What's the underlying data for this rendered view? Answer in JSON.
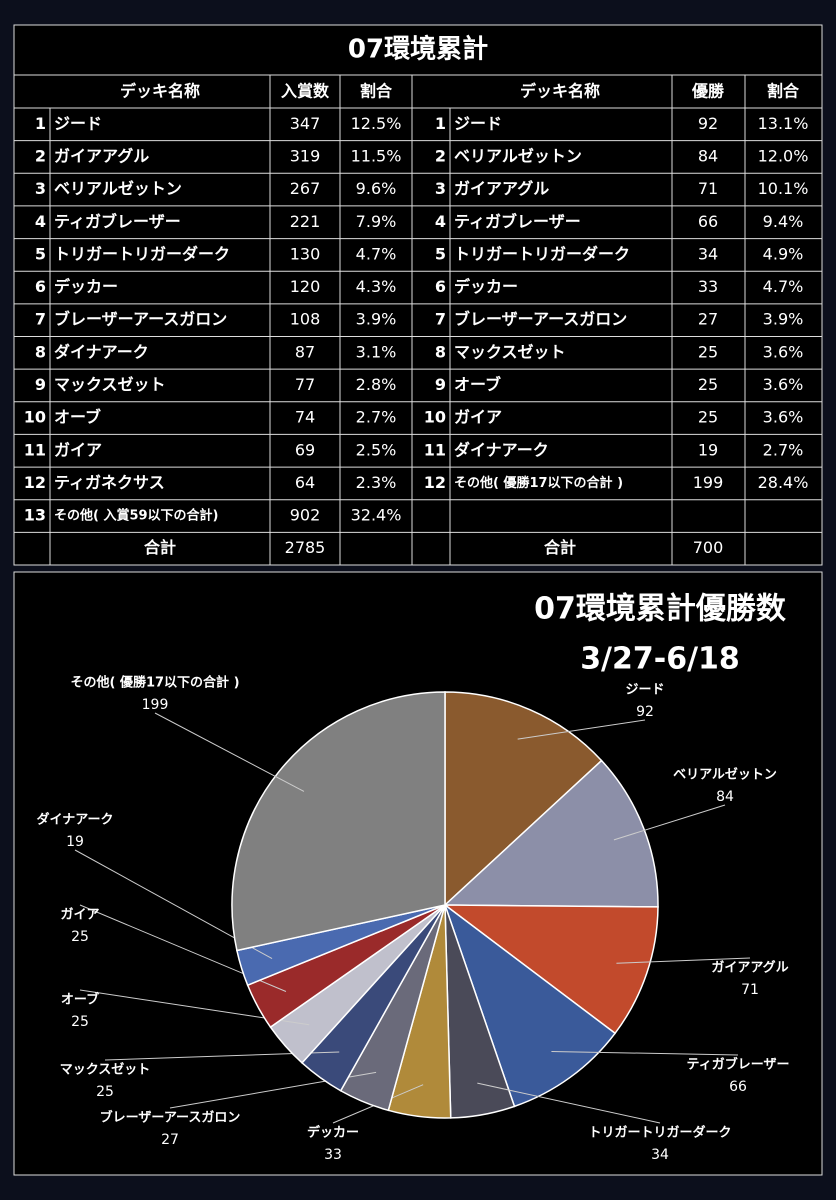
{
  "table": {
    "title": "07環境累計",
    "left": {
      "header": [
        "デッキ名称",
        "入賞数",
        "割合"
      ],
      "rows": [
        [
          1,
          "ジード",
          347,
          "12.5%"
        ],
        [
          2,
          "ガイアアグル",
          319,
          "11.5%"
        ],
        [
          3,
          "ベリアルゼットン",
          267,
          "9.6%"
        ],
        [
          4,
          "ティガブレーザー",
          221,
          "7.9%"
        ],
        [
          5,
          "トリガートリガーダーク",
          130,
          "4.7%"
        ],
        [
          6,
          "デッカー",
          120,
          "4.3%"
        ],
        [
          7,
          "ブレーザーアースガロン",
          108,
          "3.9%"
        ],
        [
          8,
          "ダイナアーク",
          87,
          "3.1%"
        ],
        [
          9,
          "マックスゼット",
          77,
          "2.8%"
        ],
        [
          10,
          "オーブ",
          74,
          "2.7%"
        ],
        [
          11,
          "ガイア",
          69,
          "2.5%"
        ],
        [
          12,
          "ティガネクサス",
          64,
          "2.3%"
        ],
        [
          13,
          "その他( 入賞59以下の合計)",
          902,
          "32.4%"
        ]
      ],
      "total": {
        "label": "合計",
        "count": 2785
      }
    },
    "right": {
      "header": [
        "デッキ名称",
        "優勝",
        "割合"
      ],
      "rows": [
        [
          1,
          "ジード",
          92,
          "13.1%"
        ],
        [
          2,
          "ベリアルゼットン",
          84,
          "12.0%"
        ],
        [
          3,
          "ガイアアグル",
          71,
          "10.1%"
        ],
        [
          4,
          "ティガブレーザー",
          66,
          "9.4%"
        ],
        [
          5,
          "トリガートリガーダーク",
          34,
          "4.9%"
        ],
        [
          6,
          "デッカー",
          33,
          "4.7%"
        ],
        [
          7,
          "ブレーザーアースガロン",
          27,
          "3.9%"
        ],
        [
          8,
          "マックスゼット",
          25,
          "3.6%"
        ],
        [
          9,
          "オーブ",
          25,
          "3.6%"
        ],
        [
          10,
          "ガイア",
          25,
          "3.6%"
        ],
        [
          11,
          "ダイナアーク",
          19,
          "2.7%"
        ],
        [
          12,
          "その他( 優勝17以下の合計 )",
          199,
          "28.4%"
        ]
      ],
      "total": {
        "label": "合計",
        "count": 700
      }
    }
  },
  "chart_data": {
    "type": "pie",
    "title": "07環境累計優勝数",
    "subtitle": "3/27-6/18",
    "categories": [
      "ジード",
      "ベリアルゼットン",
      "ガイアアグル",
      "ティガブレーザー",
      "トリガートリガーダーク",
      "デッカー",
      "ブレーザーアースガロン",
      "マックスゼット",
      "オーブ",
      "ガイア",
      "ダイナアーク",
      "その他( 優勝17以下の合計 )"
    ],
    "values": [
      92,
      84,
      71,
      66,
      34,
      33,
      27,
      25,
      25,
      25,
      19,
      199
    ],
    "colors": [
      "#8a5a2e",
      "#8c8fa8",
      "#c24a2c",
      "#3a5a9a",
      "#4a4a58",
      "#b08a3a",
      "#6a6a7a",
      "#3a4a7a",
      "#c0c0cc",
      "#9a2a2a",
      "#4a6ab0",
      "#808080"
    ]
  }
}
